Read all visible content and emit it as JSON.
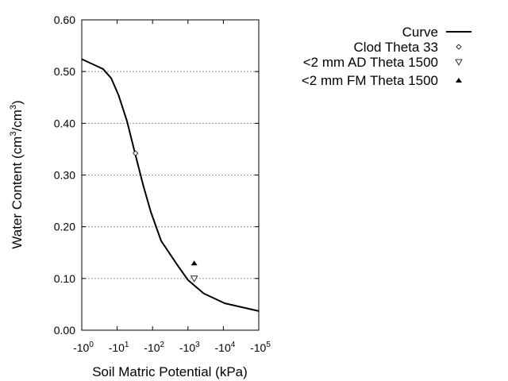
{
  "chart_data": {
    "type": "line",
    "title": "",
    "xlabel": "Soil Matric Potential (kPa)",
    "ylabel": {
      "main": "Water Content (cm",
      "sup1": "3",
      "mid": "/cm",
      "sup2": "3",
      "end": ")"
    },
    "x_scale": "log (negative)",
    "xlim": [
      -1,
      -100000
    ],
    "ylim": [
      0,
      0.6
    ],
    "x_ticks": [
      {
        "base": "-10",
        "exp": "0",
        "value": -1
      },
      {
        "base": "-10",
        "exp": "1",
        "value": -10
      },
      {
        "base": "-10",
        "exp": "2",
        "value": -100
      },
      {
        "base": "-10",
        "exp": "3",
        "value": -1000
      },
      {
        "base": "-10",
        "exp": "4",
        "value": -10000
      },
      {
        "base": "-10",
        "exp": "5",
        "value": -100000
      }
    ],
    "y_ticks": [
      "0.00",
      "0.10",
      "0.20",
      "0.30",
      "0.40",
      "0.50",
      "0.60"
    ],
    "grid": "horizontal dotted",
    "legend_position": "top-right outside",
    "series": [
      {
        "name": "Curve",
        "kind": "line",
        "color": "#000000",
        "points": [
          [
            -1,
            0.524
          ],
          [
            -4,
            0.505
          ],
          [
            -6.8,
            0.487
          ],
          [
            -11,
            0.454
          ],
          [
            -19,
            0.404
          ],
          [
            -32,
            0.342
          ],
          [
            -54,
            0.281
          ],
          [
            -89,
            0.229
          ],
          [
            -174,
            0.173
          ],
          [
            -490,
            0.127
          ],
          [
            -1000,
            0.097
          ],
          [
            -2800,
            0.071
          ],
          [
            -11000,
            0.052
          ],
          [
            -100000,
            0.037
          ]
        ]
      },
      {
        "name": "Clod Theta 33",
        "kind": "marker",
        "marker": "diamond-open",
        "points": [
          [
            -33,
            0.342
          ]
        ]
      },
      {
        "name": "<2 mm AD Theta 1500",
        "kind": "marker",
        "marker": "triangle-down-open",
        "points": [
          [
            -1500,
            0.1
          ]
        ]
      },
      {
        "name": "<2 mm FM Theta 1500",
        "kind": "marker",
        "marker": "triangle-up-filled",
        "points": [
          [
            -1500,
            0.13
          ]
        ]
      }
    ]
  }
}
